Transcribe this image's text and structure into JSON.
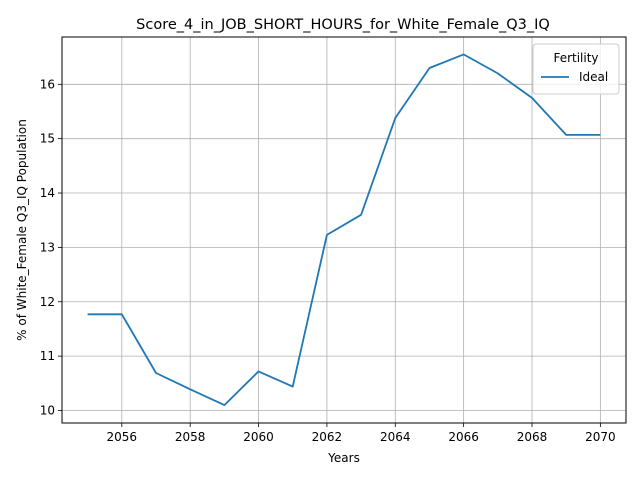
{
  "chart_data": {
    "type": "line",
    "title": "Score_4_in_JOB_SHORT_HOURS_for_White_Female_Q3_IQ",
    "xlabel": "Years",
    "ylabel": "% of White_Female Q3_IQ Population",
    "xlim": [
      2054.25,
      2070.75
    ],
    "ylim": [
      9.77,
      16.87
    ],
    "xticks": [
      2056,
      2058,
      2060,
      2062,
      2064,
      2066,
      2068,
      2070
    ],
    "yticks": [
      10,
      11,
      12,
      13,
      14,
      15,
      16
    ],
    "grid": true,
    "legend": {
      "title": "Fertility",
      "placement": "top-right"
    },
    "series": [
      {
        "name": "Ideal",
        "color": "#1f77b4",
        "x": [
          2055,
          2056,
          2057,
          2058,
          2059,
          2060,
          2061,
          2062,
          2063,
          2064,
          2065,
          2066,
          2067,
          2068,
          2069,
          2070
        ],
        "y": [
          11.77,
          11.77,
          10.69,
          10.39,
          10.1,
          10.72,
          10.44,
          13.23,
          13.6,
          15.38,
          16.3,
          16.55,
          16.2,
          15.75,
          15.07,
          15.07
        ]
      }
    ]
  }
}
